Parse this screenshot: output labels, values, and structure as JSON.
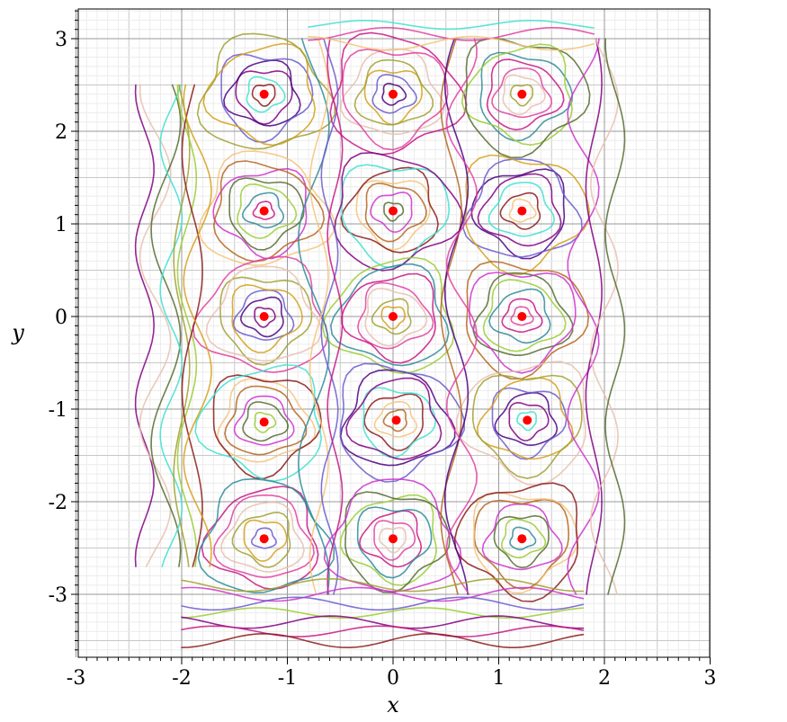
{
  "chart_data": {
    "type": "scatter",
    "xlabel": "x",
    "ylabel": "y",
    "xlim": [
      -3,
      3
    ],
    "ylim": [
      -3.6,
      3.3
    ],
    "x_ticks": [
      -3,
      -2,
      -1,
      0,
      1,
      2,
      3
    ],
    "y_ticks": [
      -3,
      -2,
      -1,
      0,
      1,
      2,
      3
    ],
    "x_tick_labels": [
      "-3",
      "-2",
      "-1",
      "0",
      "1",
      "2",
      "3"
    ],
    "y_tick_labels": [
      "-3",
      "-2",
      "-1",
      "0",
      "1",
      "2",
      "3"
    ],
    "grid": true,
    "marker_color": "#ff0000",
    "points": [
      {
        "x": -1.22,
        "y": 2.4
      },
      {
        "x": 0.0,
        "y": 2.4
      },
      {
        "x": 1.22,
        "y": 2.4
      },
      {
        "x": -1.22,
        "y": 1.14
      },
      {
        "x": 0.0,
        "y": 1.14
      },
      {
        "x": 1.22,
        "y": 1.14
      },
      {
        "x": -1.22,
        "y": 0.0
      },
      {
        "x": 0.0,
        "y": 0.0
      },
      {
        "x": 1.22,
        "y": 0.0
      },
      {
        "x": -1.22,
        "y": -1.14
      },
      {
        "x": 0.03,
        "y": -1.12
      },
      {
        "x": 1.27,
        "y": -1.12
      },
      {
        "x": -1.22,
        "y": -2.4
      },
      {
        "x": 0.0,
        "y": -2.4
      },
      {
        "x": 1.22,
        "y": -2.4
      }
    ],
    "trajectory_colors": [
      "#8b1a1a",
      "#40e0d0",
      "#800080",
      "#4b0082",
      "#6a5acd",
      "#d4a017",
      "#a0a030",
      "#e8c0b0",
      "#e040a0",
      "#c71585",
      "#2e8b9a",
      "#9acd32",
      "#556b2f",
      "#cc33cc",
      "#b5651d",
      "#f5c37a"
    ]
  }
}
